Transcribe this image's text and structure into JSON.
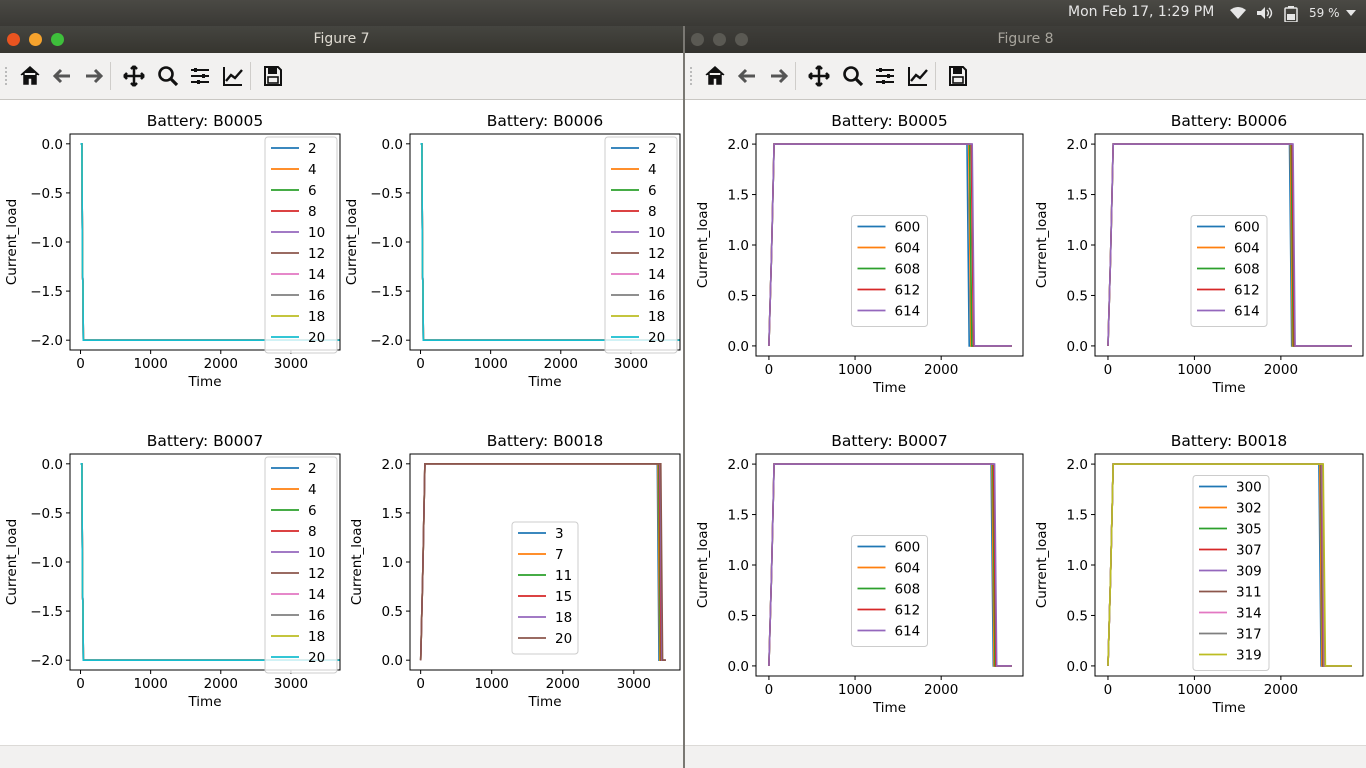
{
  "system": {
    "clock": "Mon Feb 17,  1:29 PM",
    "battery_pct": "59 %",
    "icons": [
      "wifi-icon",
      "volume-icon",
      "battery-icon",
      "menu-down-icon"
    ]
  },
  "toolbar_icons": [
    "home-icon",
    "back-icon",
    "forward-icon",
    "pan-icon",
    "zoom-icon",
    "subplots-icon",
    "edit-curves-icon",
    "save-icon"
  ],
  "windows": [
    {
      "title": "Figure 7",
      "active": true,
      "plots": [
        {
          "title": "Battery: B0005",
          "xlabel": "Time",
          "ylabel": "Current_load",
          "type": "discharge",
          "xlim": [
            -150,
            3700
          ],
          "ylim": [
            -2.1,
            0.1
          ],
          "xticks": [
            0,
            1000,
            2000,
            3000
          ],
          "yticks": [
            0.0,
            -0.5,
            -1.0,
            -1.5,
            -2.0
          ],
          "ytick_labels": [
            "0.0",
            "−0.5",
            "−1.0",
            "−1.5",
            "−2.0"
          ],
          "x_end": 3700,
          "legend": [
            "2",
            "4",
            "6",
            "8",
            "10",
            "12",
            "14",
            "16",
            "18",
            "20"
          ],
          "legend_pos": "right"
        },
        {
          "title": "Battery: B0006",
          "xlabel": "Time",
          "ylabel": "Current_load",
          "type": "discharge",
          "xlim": [
            -150,
            3700
          ],
          "ylim": [
            -2.1,
            0.1
          ],
          "xticks": [
            0,
            1000,
            2000,
            3000
          ],
          "yticks": [
            0.0,
            -0.5,
            -1.0,
            -1.5,
            -2.0
          ],
          "ytick_labels": [
            "0.0",
            "−0.5",
            "−1.0",
            "−1.5",
            "−2.0"
          ],
          "x_end": 3700,
          "legend": [
            "2",
            "4",
            "6",
            "8",
            "10",
            "12",
            "14",
            "16",
            "18",
            "20"
          ],
          "legend_pos": "right"
        },
        {
          "title": "Battery: B0007",
          "xlabel": "Time",
          "ylabel": "Current_load",
          "type": "discharge",
          "xlim": [
            -150,
            3700
          ],
          "ylim": [
            -2.1,
            0.1
          ],
          "xticks": [
            0,
            1000,
            2000,
            3000
          ],
          "yticks": [
            0.0,
            -0.5,
            -1.0,
            -1.5,
            -2.0
          ],
          "ytick_labels": [
            "0.0",
            "−0.5",
            "−1.0",
            "−1.5",
            "−2.0"
          ],
          "x_end": 3700,
          "legend": [
            "2",
            "4",
            "6",
            "8",
            "10",
            "12",
            "14",
            "16",
            "18",
            "20"
          ],
          "legend_pos": "right"
        },
        {
          "title": "Battery: B0018",
          "xlabel": "Time",
          "ylabel": "Current_load",
          "type": "charge",
          "xlim": [
            -150,
            3650
          ],
          "ylim": [
            -0.1,
            2.1
          ],
          "xticks": [
            0,
            1000,
            2000,
            3000
          ],
          "yticks": [
            2.0,
            1.5,
            1.0,
            0.5,
            0.0
          ],
          "ytick_labels": [
            "2.0",
            "1.5",
            "1.0",
            "0.5",
            "0.0"
          ],
          "x_end": 3450,
          "drops": [
            3330,
            3340,
            3350,
            3360,
            3370,
            3380
          ],
          "legend": [
            "3",
            "7",
            "11",
            "15",
            "18",
            "20"
          ],
          "legend_pos": "center"
        }
      ]
    },
    {
      "title": "Figure 8",
      "active": false,
      "plots": [
        {
          "title": "Battery: B0005",
          "xlabel": "Time",
          "ylabel": "Current_load",
          "type": "charge",
          "xlim": [
            -150,
            2950
          ],
          "ylim": [
            -0.1,
            2.1
          ],
          "xticks": [
            0,
            1000,
            2000
          ],
          "yticks": [
            2.0,
            1.5,
            1.0,
            0.5,
            0.0
          ],
          "ytick_labels": [
            "2.0",
            "1.5",
            "1.0",
            "0.5",
            "0.0"
          ],
          "x_end": 2820,
          "drops": [
            2300,
            2320,
            2330,
            2350,
            2360
          ],
          "legend": [
            "600",
            "604",
            "608",
            "612",
            "614"
          ],
          "legend_pos": "center"
        },
        {
          "title": "Battery: B0006",
          "xlabel": "Time",
          "ylabel": "Current_load",
          "type": "charge",
          "xlim": [
            -150,
            2950
          ],
          "ylim": [
            -0.1,
            2.1
          ],
          "xticks": [
            0,
            1000,
            2000
          ],
          "yticks": [
            2.0,
            1.5,
            1.0,
            0.5,
            0.0
          ],
          "ytick_labels": [
            "2.0",
            "1.5",
            "1.0",
            "0.5",
            "0.0"
          ],
          "x_end": 2820,
          "drops": [
            2100,
            2110,
            2120,
            2130,
            2140
          ],
          "legend": [
            "600",
            "604",
            "608",
            "612",
            "614"
          ],
          "legend_pos": "center"
        },
        {
          "title": "Battery: B0007",
          "xlabel": "Time",
          "ylabel": "Current_load",
          "type": "charge",
          "xlim": [
            -150,
            2950
          ],
          "ylim": [
            -0.1,
            2.1
          ],
          "xticks": [
            0,
            1000,
            2000
          ],
          "yticks": [
            2.0,
            1.5,
            1.0,
            0.5,
            0.0
          ],
          "ytick_labels": [
            "2.0",
            "1.5",
            "1.0",
            "0.5",
            "0.0"
          ],
          "x_end": 2820,
          "drops": [
            2580,
            2590,
            2600,
            2610,
            2620
          ],
          "legend": [
            "600",
            "604",
            "608",
            "612",
            "614"
          ],
          "legend_pos": "center"
        },
        {
          "title": "Battery: B0018",
          "xlabel": "Time",
          "ylabel": "Current_load",
          "type": "charge",
          "xlim": [
            -150,
            2950
          ],
          "ylim": [
            -0.1,
            2.1
          ],
          "xticks": [
            0,
            1000,
            2000
          ],
          "yticks": [
            2.0,
            1.5,
            1.0,
            0.5,
            0.0
          ],
          "ytick_labels": [
            "2.0",
            "1.5",
            "1.0",
            "0.5",
            "0.0"
          ],
          "x_end": 2820,
          "drops": [
            2440,
            2450,
            2460,
            2465,
            2470,
            2475,
            2480,
            2485,
            2490
          ],
          "legend": [
            "300",
            "302",
            "305",
            "307",
            "309",
            "311",
            "314",
            "317",
            "319"
          ],
          "legend_pos": "center"
        }
      ]
    }
  ],
  "colors": [
    "#1f77b4",
    "#ff7f0e",
    "#2ca02c",
    "#d62728",
    "#9467bd",
    "#8c564b",
    "#e377c2",
    "#7f7f7f",
    "#bcbd22",
    "#17becf"
  ],
  "chart_data": [
    {
      "figure": "Figure 7",
      "title": "Battery: B0005",
      "type": "line",
      "xlabel": "Time",
      "ylabel": "Current_load",
      "xlim": [
        -150,
        3700
      ],
      "ylim": [
        -2.1,
        0.1
      ],
      "series": [
        {
          "name": "2"
        },
        {
          "name": "4"
        },
        {
          "name": "6"
        },
        {
          "name": "8"
        },
        {
          "name": "10"
        },
        {
          "name": "12"
        },
        {
          "name": "14"
        },
        {
          "name": "16"
        },
        {
          "name": "18"
        },
        {
          "name": "20"
        }
      ],
      "x": [
        0,
        20,
        40,
        3700
      ],
      "y": [
        0.0,
        0.0,
        -2.0,
        -2.0
      ]
    },
    {
      "figure": "Figure 7",
      "title": "Battery: B0006",
      "type": "line",
      "xlabel": "Time",
      "ylabel": "Current_load",
      "xlim": [
        -150,
        3700
      ],
      "ylim": [
        -2.1,
        0.1
      ],
      "series": [
        {
          "name": "2"
        },
        {
          "name": "4"
        },
        {
          "name": "6"
        },
        {
          "name": "8"
        },
        {
          "name": "10"
        },
        {
          "name": "12"
        },
        {
          "name": "14"
        },
        {
          "name": "16"
        },
        {
          "name": "18"
        },
        {
          "name": "20"
        }
      ],
      "x": [
        0,
        20,
        40,
        3700
      ],
      "y": [
        0.0,
        0.0,
        -2.0,
        -2.0
      ]
    },
    {
      "figure": "Figure 7",
      "title": "Battery: B0007",
      "type": "line",
      "xlabel": "Time",
      "ylabel": "Current_load",
      "xlim": [
        -150,
        3700
      ],
      "ylim": [
        -2.1,
        0.1
      ],
      "series": [
        {
          "name": "2"
        },
        {
          "name": "4"
        },
        {
          "name": "6"
        },
        {
          "name": "8"
        },
        {
          "name": "10"
        },
        {
          "name": "12"
        },
        {
          "name": "14"
        },
        {
          "name": "16"
        },
        {
          "name": "18"
        },
        {
          "name": "20"
        }
      ],
      "x": [
        0,
        20,
        40,
        3700
      ],
      "y": [
        0.0,
        0.0,
        -2.0,
        -2.0
      ]
    },
    {
      "figure": "Figure 7",
      "title": "Battery: B0018",
      "type": "line",
      "xlabel": "Time",
      "ylabel": "Current_load",
      "xlim": [
        -150,
        3650
      ],
      "ylim": [
        -0.1,
        2.1
      ],
      "series": [
        {
          "name": "3",
          "drop_at": 3330
        },
        {
          "name": "7",
          "drop_at": 3340
        },
        {
          "name": "11",
          "drop_at": 3350
        },
        {
          "name": "15",
          "drop_at": 3360
        },
        {
          "name": "18",
          "drop_at": 3370
        },
        {
          "name": "20",
          "drop_at": 3380
        }
      ]
    },
    {
      "figure": "Figure 8",
      "title": "Battery: B0005",
      "type": "line",
      "xlabel": "Time",
      "ylabel": "Current_load",
      "xlim": [
        -150,
        2950
      ],
      "ylim": [
        -0.1,
        2.1
      ],
      "series": [
        {
          "name": "600",
          "drop_at": 2300
        },
        {
          "name": "604",
          "drop_at": 2320
        },
        {
          "name": "608",
          "drop_at": 2330
        },
        {
          "name": "612",
          "drop_at": 2350
        },
        {
          "name": "614",
          "drop_at": 2360
        }
      ]
    },
    {
      "figure": "Figure 8",
      "title": "Battery: B0006",
      "type": "line",
      "xlabel": "Time",
      "ylabel": "Current_load",
      "xlim": [
        -150,
        2950
      ],
      "ylim": [
        -0.1,
        2.1
      ],
      "series": [
        {
          "name": "600",
          "drop_at": 2100
        },
        {
          "name": "604",
          "drop_at": 2110
        },
        {
          "name": "608",
          "drop_at": 2120
        },
        {
          "name": "612",
          "drop_at": 2130
        },
        {
          "name": "614",
          "drop_at": 2140
        }
      ]
    },
    {
      "figure": "Figure 8",
      "title": "Battery: B0007",
      "type": "line",
      "xlabel": "Time",
      "ylabel": "Current_load",
      "xlim": [
        -150,
        2950
      ],
      "ylim": [
        -0.1,
        2.1
      ],
      "series": [
        {
          "name": "600",
          "drop_at": 2580
        },
        {
          "name": "604",
          "drop_at": 2590
        },
        {
          "name": "608",
          "drop_at": 2600
        },
        {
          "name": "612",
          "drop_at": 2610
        },
        {
          "name": "614",
          "drop_at": 2620
        }
      ]
    },
    {
      "figure": "Figure 8",
      "title": "Battery: B0018",
      "type": "line",
      "xlabel": "Time",
      "ylabel": "Current_load",
      "xlim": [
        -150,
        2950
      ],
      "ylim": [
        -0.1,
        2.1
      ],
      "series": [
        {
          "name": "300",
          "drop_at": 2440
        },
        {
          "name": "302",
          "drop_at": 2450
        },
        {
          "name": "305",
          "drop_at": 2460
        },
        {
          "name": "307",
          "drop_at": 2465
        },
        {
          "name": "309",
          "drop_at": 2470
        },
        {
          "name": "311",
          "drop_at": 2475
        },
        {
          "name": "314",
          "drop_at": 2480
        },
        {
          "name": "317",
          "drop_at": 2485
        },
        {
          "name": "319",
          "drop_at": 2490
        }
      ]
    }
  ]
}
